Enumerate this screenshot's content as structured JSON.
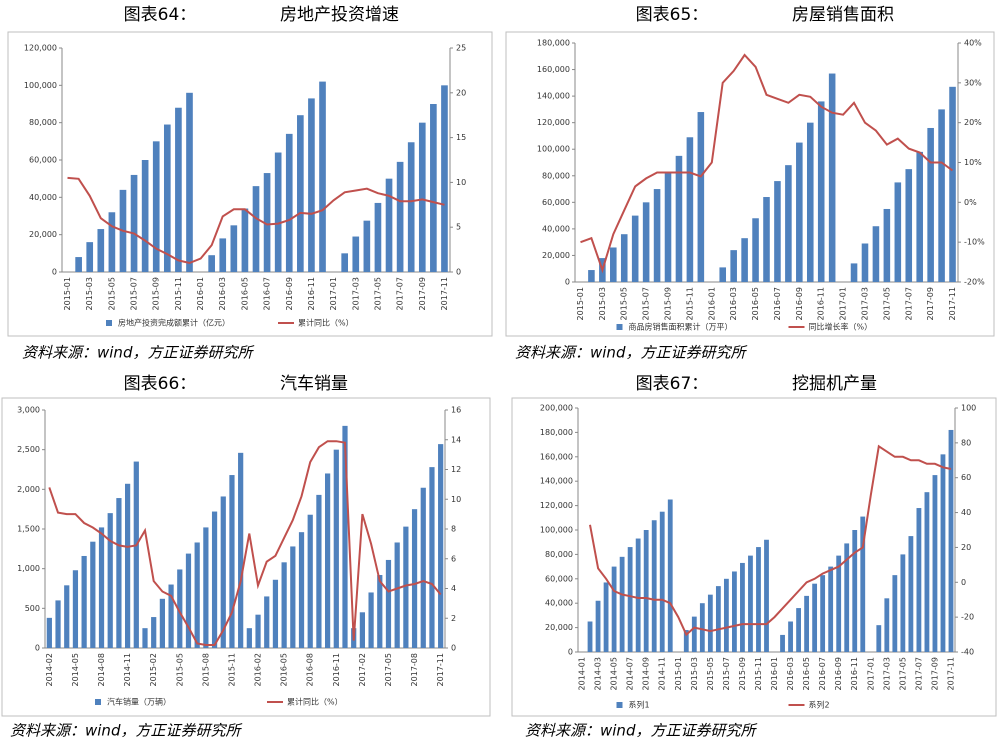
{
  "chart_data": [
    {
      "type": "combo",
      "label": "图表64：",
      "title": "房地产投资增速",
      "source": "资料来源：wind，方正证券研究所",
      "categories": [
        "2015-01",
        null,
        "2015-03",
        null,
        "2015-05",
        null,
        "2015-07",
        null,
        "2015-09",
        null,
        "2015-11",
        null,
        "2016-01",
        null,
        "2016-03",
        null,
        "2016-05",
        null,
        "2016-07",
        null,
        "2016-09",
        null,
        "2016-11",
        null,
        "2017-01",
        null,
        "2017-03",
        null,
        "2017-05",
        null,
        "2017-07",
        null,
        "2017-09",
        null,
        "2017-11"
      ],
      "series": [
        {
          "name": "房地产投资完成额累计（亿元）",
          "type": "bar",
          "color": "#4f81bd",
          "values": [
            null,
            8000,
            16000,
            23000,
            32000,
            44000,
            52000,
            60000,
            70000,
            79000,
            88000,
            96000,
            null,
            9000,
            18000,
            25000,
            34000,
            46000,
            53000,
            64000,
            74000,
            84000,
            93000,
            102000,
            null,
            10000,
            19000,
            27500,
            37000,
            50000,
            59000,
            69500,
            80000,
            90000,
            100000
          ]
        },
        {
          "name": "累计同比（%）",
          "type": "line",
          "axis": "y2",
          "color": "#c0504d",
          "values": [
            10.5,
            10.4,
            8.5,
            6,
            5.1,
            4.6,
            4.3,
            3.5,
            2.6,
            2,
            1.3,
            1,
            1.5,
            3,
            6.2,
            7,
            7,
            6,
            5.3,
            5.4,
            5.8,
            6.6,
            6.5,
            6.9,
            8,
            8.9,
            9.1,
            9.3,
            8.8,
            8.5,
            7.9,
            7.9,
            8.1,
            7.8,
            7.5
          ]
        }
      ],
      "ylim": [
        0,
        120000
      ],
      "yticks": [
        0,
        {
          "value": 20000,
          "label": "20,000"
        },
        {
          "value": 40000,
          "label": "40,000"
        },
        {
          "value": 60000,
          "label": "60,000"
        },
        {
          "value": 80000,
          "label": "80,000"
        },
        {
          "value": 100000,
          "label": "100,000"
        },
        {
          "value": 120000,
          "label": "120,000"
        }
      ],
      "y2lim": [
        0,
        25
      ],
      "y2ticks": [
        0,
        5,
        10,
        15,
        20,
        25
      ]
    },
    {
      "type": "combo",
      "label": "图表65：",
      "title": "房屋销售面积",
      "source": "资料来源：wind，方正证券研究所",
      "categories": [
        "2015-01",
        null,
        "2015-03",
        null,
        "2015-05",
        null,
        "2015-07",
        null,
        "2015-09",
        null,
        "2015-11",
        null,
        "2016-01",
        null,
        "2016-03",
        null,
        "2016-05",
        null,
        "2016-07",
        null,
        "2016-09",
        null,
        "2016-11",
        null,
        "2017-01",
        null,
        "2017-03",
        null,
        "2017-05",
        null,
        "2017-07",
        null,
        "2017-09",
        null,
        "2017-11"
      ],
      "series": [
        {
          "name": "商品房销售面积累计（万平）",
          "type": "bar",
          "color": "#4f81bd",
          "values": [
            null,
            9000,
            18000,
            26000,
            36000,
            50000,
            60000,
            70000,
            82000,
            95000,
            109000,
            128000,
            null,
            11000,
            24000,
            33000,
            48000,
            64000,
            76000,
            88000,
            105000,
            120000,
            136000,
            157000,
            null,
            14000,
            29000,
            42000,
            55000,
            75000,
            85000,
            98000,
            116000,
            130000,
            147000
          ]
        },
        {
          "name": "同比增长率（%）",
          "type": "line",
          "axis": "y2",
          "color": "#c0504d",
          "values": [
            -10,
            -9,
            -17,
            -8,
            -2,
            4,
            6,
            7.5,
            7.5,
            7.5,
            7.5,
            6.5,
            10,
            30,
            33,
            37,
            34,
            27,
            26,
            25,
            27,
            26.5,
            24,
            22.5,
            22,
            25,
            20,
            18,
            14.5,
            16,
            13.5,
            12.5,
            10,
            10,
            8
          ]
        }
      ],
      "ylim": [
        0,
        180000
      ],
      "yticks": [
        0,
        {
          "value": 20000,
          "label": "20,000"
        },
        {
          "value": 40000,
          "label": "40,000"
        },
        {
          "value": 60000,
          "label": "60,000"
        },
        {
          "value": 80000,
          "label": "80,000"
        },
        {
          "value": 100000,
          "label": "100,000"
        },
        {
          "value": 120000,
          "label": "120,000"
        },
        {
          "value": 140000,
          "label": "140,000"
        },
        {
          "value": 160000,
          "label": "160,000"
        },
        {
          "value": 180000,
          "label": "180,000"
        }
      ],
      "y2lim": [
        -20,
        40
      ],
      "y2ticks": [
        {
          "value": -20,
          "label": "-20%"
        },
        {
          "value": -10,
          "label": "-10%"
        },
        {
          "value": 0,
          "label": "0%"
        },
        {
          "value": 10,
          "label": "10%"
        },
        {
          "value": 20,
          "label": "20%"
        },
        {
          "value": 30,
          "label": "30%"
        },
        {
          "value": 40,
          "label": "40%"
        }
      ]
    },
    {
      "type": "combo",
      "label": "图表66：",
      "title": "汽车销量",
      "source": "资料来源：wind，方正证券研究所",
      "categories": [
        "2014-02",
        null,
        null,
        "2014-05",
        null,
        null,
        "2014-08",
        null,
        null,
        "2014-11",
        null,
        null,
        "2015-02",
        null,
        null,
        "2015-05",
        null,
        null,
        "2015-08",
        null,
        null,
        "2015-11",
        null,
        null,
        "2016-02",
        null,
        null,
        "2016-05",
        null,
        null,
        "2016-08",
        null,
        null,
        "2016-11",
        null,
        null,
        "2017-02",
        null,
        null,
        "2017-05",
        null,
        null,
        "2017-08",
        null,
        null,
        "2017-11"
      ],
      "series": [
        {
          "name": "汽车销量（万辆）",
          "type": "bar",
          "color": "#4f81bd",
          "values": [
            380,
            600,
            790,
            980,
            1160,
            1340,
            1520,
            1700,
            1890,
            2070,
            2350,
            250,
            390,
            620,
            800,
            990,
            1190,
            1330,
            1520,
            1720,
            1910,
            2180,
            2460,
            250,
            420,
            650,
            860,
            1080,
            1280,
            1460,
            1680,
            1930,
            2200,
            2500,
            2800,
            250,
            450,
            700,
            920,
            1110,
            1330,
            1530,
            1750,
            2020,
            2280,
            2570
          ]
        },
        {
          "name": "累计同比（%）",
          "type": "line",
          "axis": "y2",
          "color": "#c0504d",
          "values": [
            10.8,
            9.1,
            9,
            9,
            8.4,
            8.1,
            7.7,
            7.2,
            6.9,
            6.8,
            6.9,
            7.9,
            4.5,
            3.8,
            3.5,
            2.4,
            1.4,
            0.3,
            0.2,
            0.2,
            1.2,
            2.4,
            4.5,
            7.7,
            4.2,
            5.8,
            6.2,
            7.4,
            8.6,
            10.2,
            12.5,
            13.5,
            13.9,
            13.9,
            13.8,
            0.5,
            9,
            7,
            4.5,
            3.8,
            4,
            4.2,
            4.3,
            4.5,
            4.3,
            3.6
          ]
        }
      ],
      "ylim": [
        0,
        3000
      ],
      "yticks": [
        0,
        500,
        {
          "value": 1000,
          "label": "1,000"
        },
        {
          "value": 1500,
          "label": "1,500"
        },
        {
          "value": 2000,
          "label": "2,000"
        },
        {
          "value": 2500,
          "label": "2,500"
        },
        {
          "value": 3000,
          "label": "3,000"
        }
      ],
      "y2lim": [
        0,
        16
      ],
      "y2ticks": [
        0,
        2,
        4,
        6,
        8,
        10,
        12,
        14,
        16
      ]
    },
    {
      "type": "combo",
      "label": "图表67：",
      "title": "挖掘机产量",
      "source": "资料来源：wind，方正证券研究所",
      "categories": [
        "2014-01",
        null,
        "2014-03",
        null,
        "2014-05",
        null,
        "2014-07",
        null,
        "2014-09",
        null,
        "2014-11",
        null,
        "2015-01",
        null,
        "2015-03",
        null,
        "2015-05",
        null,
        "2015-07",
        null,
        "2015-09",
        null,
        "2015-11",
        null,
        "2016-01",
        null,
        "2016-03",
        null,
        "2016-05",
        null,
        "2016-07",
        null,
        "2016-09",
        null,
        "2016-11",
        null,
        "2017-01",
        null,
        "2017-03",
        null,
        "2017-05",
        null,
        "2017-07",
        null,
        "2017-09",
        null,
        "2017-11"
      ],
      "series": [
        {
          "name": "系列1",
          "type": "bar",
          "color": "#4f81bd",
          "values": [
            null,
            25000,
            42000,
            57000,
            70000,
            78000,
            86000,
            93000,
            100000,
            108000,
            115000,
            125000,
            null,
            18000,
            29000,
            40000,
            47000,
            54000,
            60000,
            66000,
            73000,
            79000,
            86000,
            92000,
            null,
            14000,
            25000,
            36000,
            46000,
            56000,
            63000,
            70000,
            79000,
            89000,
            100000,
            111000,
            null,
            22000,
            44000,
            63000,
            80000,
            95000,
            118000,
            131000,
            145000,
            162000,
            182000
          ]
        },
        {
          "name": "系列2",
          "type": "line",
          "axis": "y2",
          "color": "#c0504d",
          "values": [
            null,
            33,
            8,
            2,
            -5,
            -7,
            -8,
            -9,
            -9,
            -10,
            -10,
            -12,
            -20,
            -30,
            -26,
            -27,
            -28,
            -27,
            -26,
            -25,
            -24,
            -24,
            -24,
            -24,
            -20,
            -15,
            -10,
            -5,
            0,
            2,
            5,
            7,
            9,
            13,
            17,
            20,
            50,
            78,
            75,
            72,
            72,
            70,
            70,
            68,
            68,
            66,
            65
          ]
        }
      ],
      "ylim": [
        0,
        200000
      ],
      "yticks": [
        0,
        {
          "value": 20000,
          "label": "20,000"
        },
        {
          "value": 40000,
          "label": "40,000"
        },
        {
          "value": 60000,
          "label": "60,000"
        },
        {
          "value": 80000,
          "label": "80,000"
        },
        {
          "value": 100000,
          "label": "100,000"
        },
        {
          "value": 120000,
          "label": "120,000"
        },
        {
          "value": 140000,
          "label": "140,000"
        },
        {
          "value": 160000,
          "label": "160,000"
        },
        {
          "value": 180000,
          "label": "180,000"
        },
        {
          "value": 200000,
          "label": "200,000"
        }
      ],
      "y2lim": [
        -40,
        100
      ],
      "y2ticks": [
        -40,
        -20,
        0,
        20,
        40,
        60,
        80,
        100
      ]
    }
  ]
}
